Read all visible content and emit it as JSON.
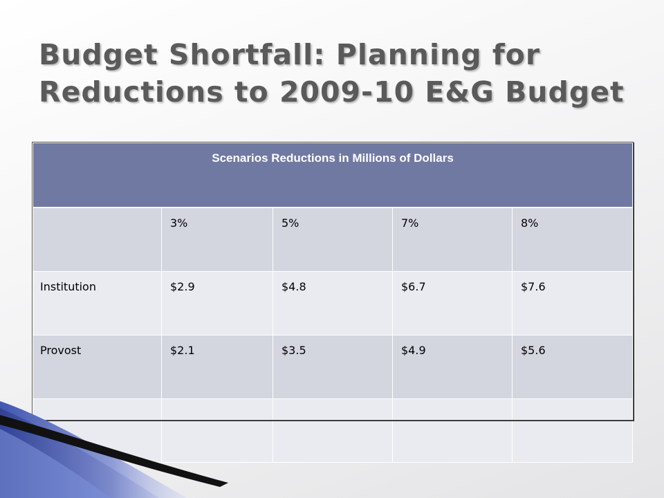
{
  "slide": {
    "title_line1": "Budget Shortfall: Planning for",
    "title_line2": "Reductions to 2009-10 E&G Budget"
  },
  "table": {
    "caption": "Scenarios Reductions in Millions of Dollars",
    "header_row": [
      "",
      "3%",
      "5%",
      "7%",
      "8%"
    ],
    "rows": [
      {
        "label": "Institution",
        "values": [
          "$2.9",
          "$4.8",
          "$6.7",
          "$7.6"
        ]
      },
      {
        "label": "Provost",
        "values": [
          "$2.1",
          "$3.5",
          "$4.9",
          "$5.6"
        ]
      },
      {
        "label": "",
        "values": [
          "",
          "",
          "",
          ""
        ]
      }
    ]
  },
  "colors": {
    "header_bg": "#6f79a2",
    "row_dark": "#d3d5df",
    "row_light": "#eaebf0",
    "title_text": "#5a5a5a",
    "deco_blue": "#5a6cc0"
  }
}
